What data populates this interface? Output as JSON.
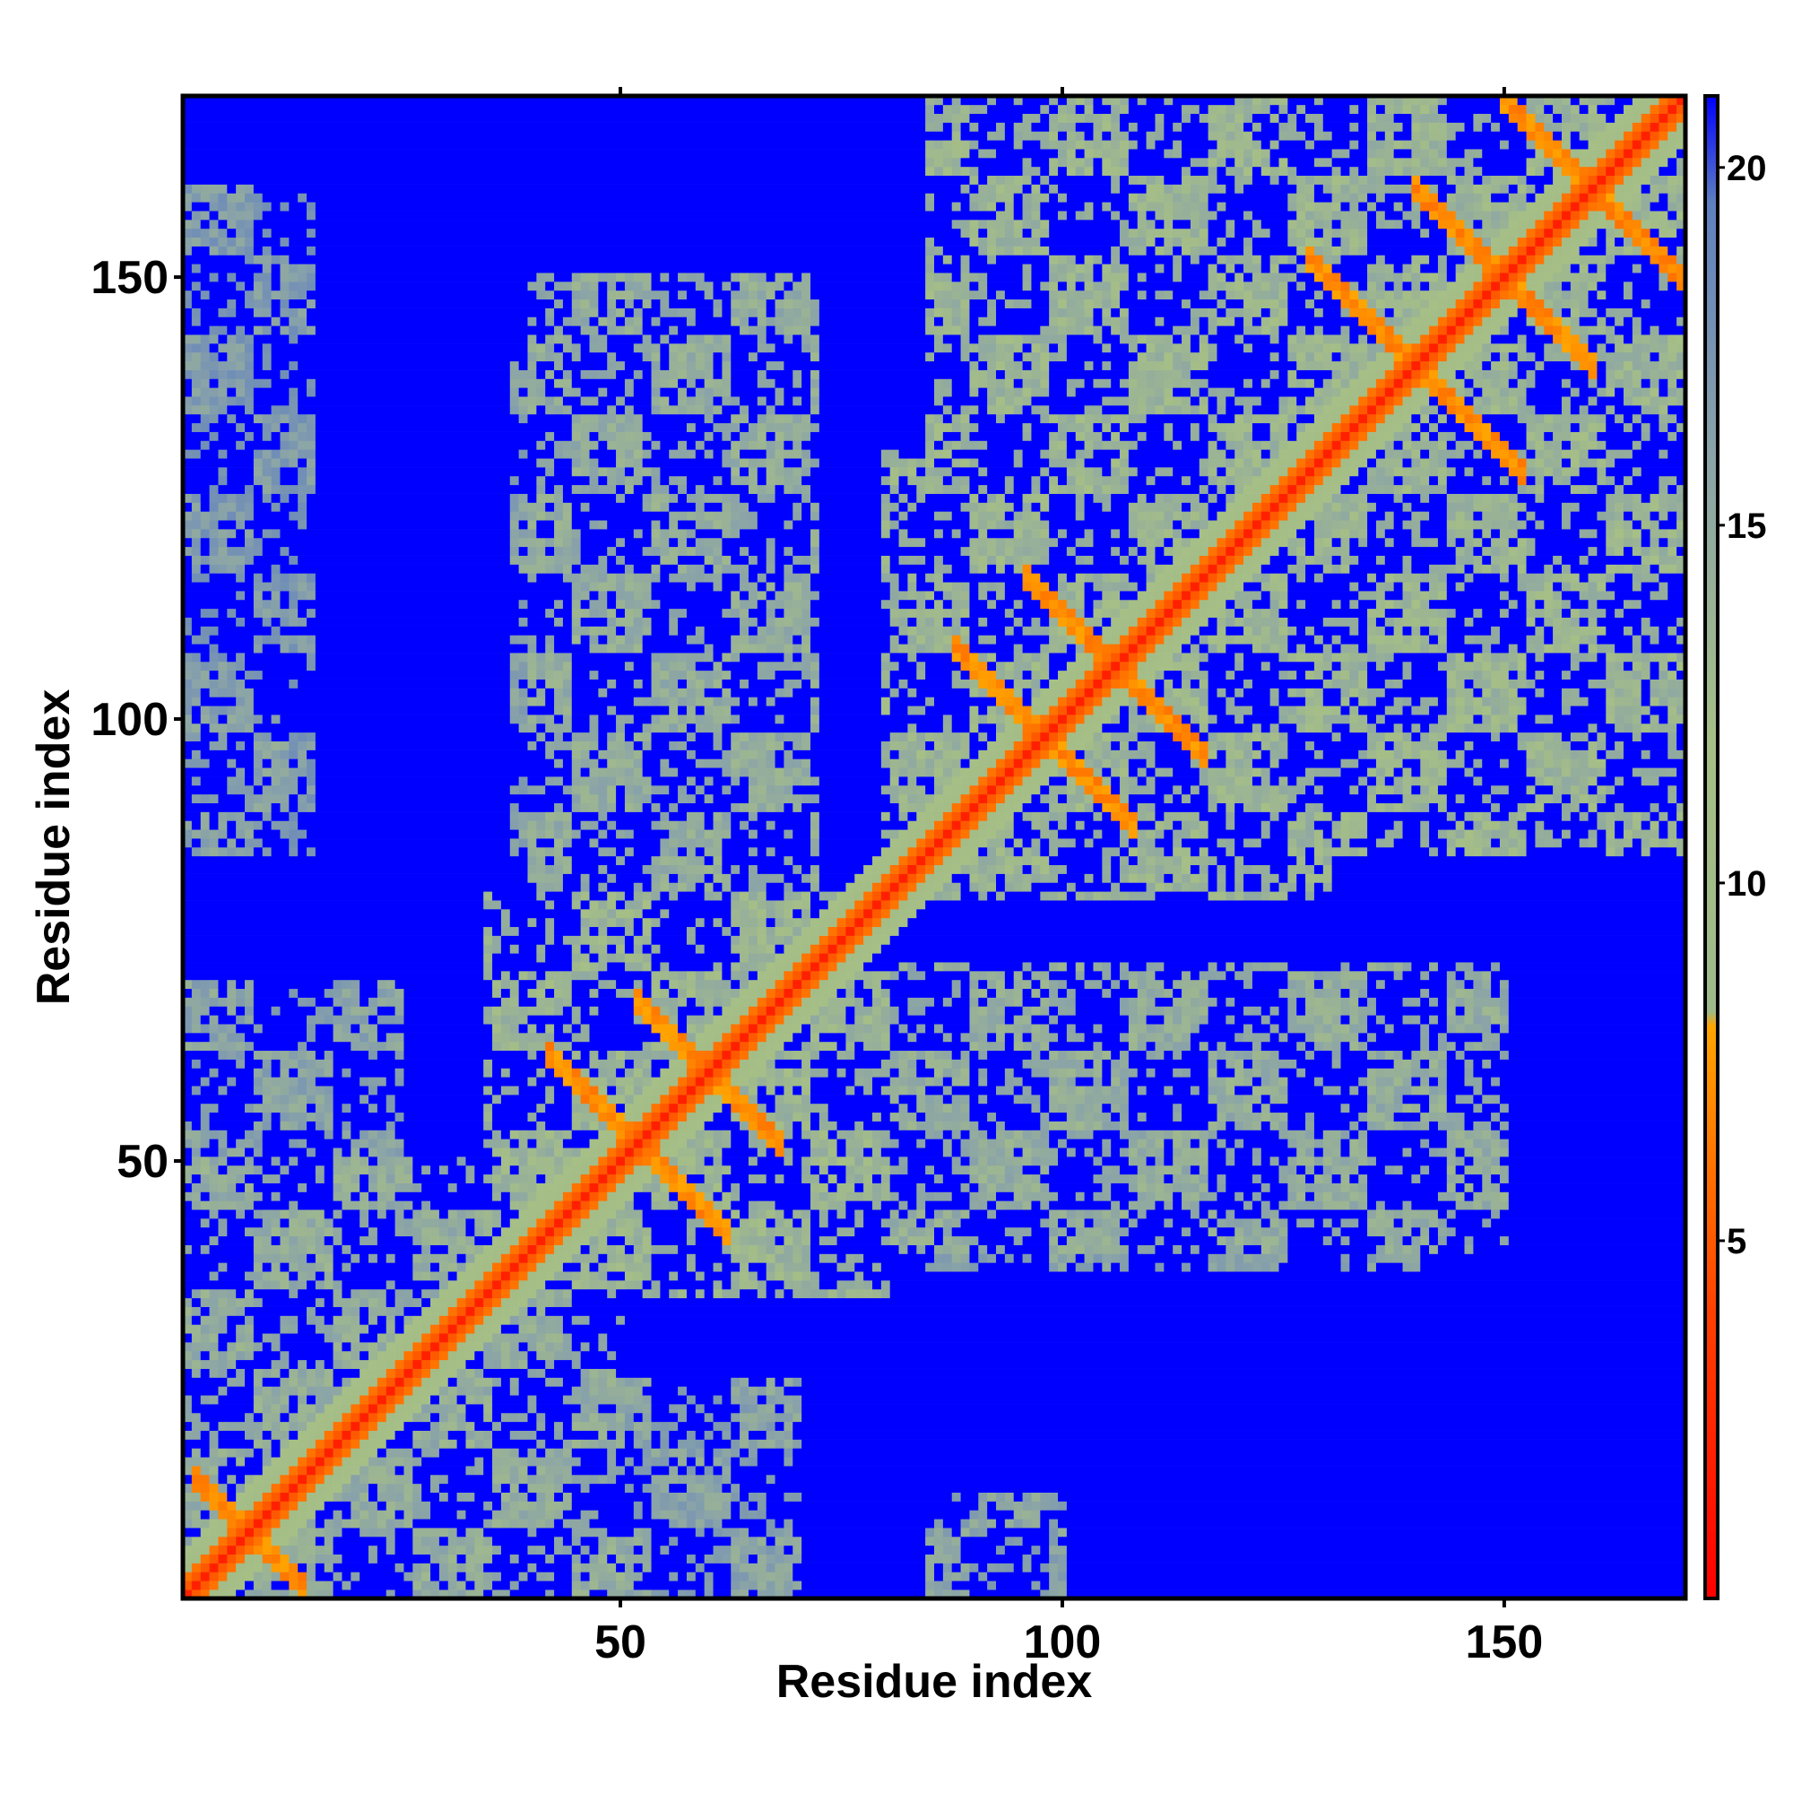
{
  "chart_data": {
    "type": "heatmap",
    "title": "",
    "xlabel": "Residue index",
    "ylabel": "Residue index",
    "n_residues": 170,
    "xlim": [
      1,
      170
    ],
    "ylim": [
      1,
      170
    ],
    "x_ticks": [
      50,
      100,
      150
    ],
    "y_ticks": [
      50,
      100,
      150
    ],
    "x_tick_labels": [
      "50",
      "100",
      "150"
    ],
    "y_tick_labels": [
      "50",
      "100",
      "150"
    ],
    "colorbar": {
      "range": [
        0,
        21
      ],
      "ticks": [
        5,
        10,
        15,
        20
      ],
      "tick_labels": [
        "5",
        "10",
        "15",
        "20"
      ],
      "palette": [
        {
          "value": 0,
          "color": "#ff0000"
        },
        {
          "value": 4,
          "color": "#ff4000"
        },
        {
          "value": 8,
          "color": "#ffa500"
        },
        {
          "value": 8.2,
          "color": "#9fb98a"
        },
        {
          "value": 12,
          "color": "#a6bf86"
        },
        {
          "value": 16,
          "color": "#8aa3a8"
        },
        {
          "value": 19.5,
          "color": "#5f80c0"
        },
        {
          "value": 21,
          "color": "#0000ff"
        }
      ]
    },
    "background_value": 21,
    "background_color": "#0000ff",
    "diagonal_value": 2,
    "secondary_structure_crossings": [
      {
        "center": 8,
        "halfwidth": 6,
        "value": 6
      },
      {
        "center": 52,
        "halfwidth": 10,
        "value": 6
      },
      {
        "center": 60,
        "halfwidth": 8,
        "value": 6
      },
      {
        "center": 98,
        "halfwidth": 10,
        "value": 6
      },
      {
        "center": 106,
        "halfwidth": 10,
        "value": 6
      },
      {
        "center": 140,
        "halfwidth": 12,
        "value": 6
      },
      {
        "center": 150,
        "halfwidth": 10,
        "value": 6
      },
      {
        "center": 160,
        "halfwidth": 10,
        "value": 6
      }
    ],
    "contact_domains": [
      {
        "i": [
          35,
          80
        ],
        "j": [
          35,
          80
        ],
        "value": 12
      },
      {
        "i": [
          80,
          130
        ],
        "j": [
          80,
          130
        ],
        "value": 12
      },
      {
        "i": [
          85,
          170
        ],
        "j": [
          120,
          170
        ],
        "value": 12
      },
      {
        "i": [
          120,
          170
        ],
        "j": [
          85,
          170
        ],
        "value": 12
      },
      {
        "i": [
          60,
          150
        ],
        "j": [
          40,
          72
        ],
        "value": 13
      },
      {
        "i": [
          40,
          72
        ],
        "j": [
          60,
          150
        ],
        "value": 13
      },
      {
        "i": [
          38,
          70
        ],
        "j": [
          85,
          140
        ],
        "value": 14
      },
      {
        "i": [
          85,
          140
        ],
        "j": [
          38,
          70
        ],
        "value": 14
      },
      {
        "i": [
          1,
          35
        ],
        "j": [
          1,
          50
        ],
        "value": 13
      },
      {
        "i": [
          1,
          50
        ],
        "j": [
          1,
          35
        ],
        "value": 13
      },
      {
        "i": [
          35,
          70
        ],
        "j": [
          1,
          25
        ],
        "value": 14
      },
      {
        "i": [
          1,
          25
        ],
        "j": [
          35,
          70
        ],
        "value": 14
      },
      {
        "i": [
          85,
          100
        ],
        "j": [
          1,
          12
        ],
        "value": 14
      },
      {
        "i": [
          1,
          12
        ],
        "j": [
          85,
          100
        ],
        "value": 14
      },
      {
        "i": [
          130,
          145
        ],
        "j": [
          40,
          60
        ],
        "value": 14
      },
      {
        "i": [
          1,
          15
        ],
        "j": [
          85,
          140
        ],
        "value": 15
      },
      {
        "i": [
          1,
          15
        ],
        "j": [
          140,
          160
        ],
        "value": 15
      }
    ]
  }
}
